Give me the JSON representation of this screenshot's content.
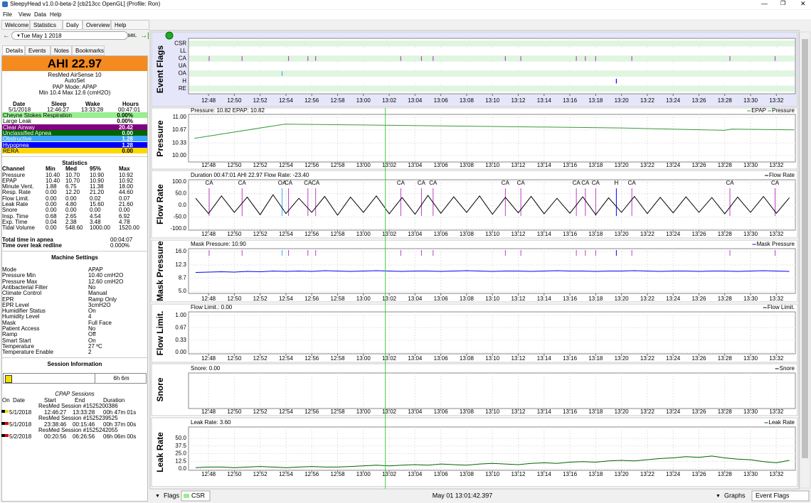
{
  "window": {
    "title": "SleepyHead v1.0.0-beta-2 [cb213cc OpenGL] (Profile: Ron)"
  },
  "menu": [
    "File",
    "View",
    "Data",
    "Help"
  ],
  "tabs": [
    "Welcome",
    "Statistics",
    "Daily",
    "Overview",
    "Help Browser"
  ],
  "date_nav": "Tue May 1 2018",
  "subtabs": [
    "Details",
    "Events",
    "Notes",
    "Bookmarks"
  ],
  "ahi": "AHI 22.97",
  "machine": [
    "ResMed AirSense 10",
    "AutoSet",
    "PAP Mode: APAP",
    "Min 10.4 Max 12.6 (cmH2O)"
  ],
  "summary": {
    "headers": [
      "Date",
      "Sleep",
      "Wake",
      "Hours"
    ],
    "values": [
      "5/1/2018",
      "12:46:27",
      "13:33:28",
      "00:47:01"
    ]
  },
  "indices": [
    {
      "name": "Cheyne Stokes Respiration",
      "value": "0.00%",
      "color": "#98ee90",
      "text": "#000"
    },
    {
      "name": "Large Leak",
      "value": "0.00%",
      "color": "#ffffff",
      "text": "#000"
    },
    {
      "name": "Clear Airway",
      "value": "20.42",
      "color": "#800080",
      "text": "#fff"
    },
    {
      "name": "Unclassified Apnea",
      "value": "0.00",
      "color": "#006400",
      "text": "#fff"
    },
    {
      "name": "Obstructive",
      "value": "1.28",
      "color": "#40a8ff",
      "text": "#fff"
    },
    {
      "name": "Hypopnea",
      "value": "1.28",
      "color": "#0000ff",
      "text": "#fff"
    },
    {
      "name": "RERA",
      "value": "0.00",
      "color": "#ffd700",
      "text": "#000"
    }
  ],
  "statistics": {
    "title": "Statistics",
    "headers": [
      "Channel",
      "Min",
      "Med",
      "95%",
      "Max"
    ],
    "rows": [
      [
        "Pressure",
        "10.40",
        "10.70",
        "10.90",
        "10.92"
      ],
      [
        "EPAP",
        "10.40",
        "10.70",
        "10.90",
        "10.92"
      ],
      [
        "Minute Vent.",
        "1.88",
        "6.75",
        "11.38",
        "18.00"
      ],
      [
        "Resp. Rate",
        "0.00",
        "12.20",
        "21.20",
        "44.60"
      ],
      [
        "Flow Limit.",
        "0.00",
        "0.00",
        "0.02",
        "0.07"
      ],
      [
        "Leak Rate",
        "0.00",
        "4.80",
        "15.60",
        "21.60"
      ],
      [
        "Snore",
        "0.00",
        "0.00",
        "0.00",
        "0.00"
      ],
      [
        "Insp. Time",
        "0.68",
        "2.65",
        "4.54",
        "6.92"
      ],
      [
        "Exp. Time",
        "0.04",
        "2.38",
        "3.48",
        "4.78"
      ],
      [
        "Tidal Volume",
        "0.00",
        "548.60",
        "1000.00",
        "1520.00"
      ]
    ]
  },
  "totals": [
    [
      "Total time in apnea",
      "00:04:07"
    ],
    [
      "Time over leak redline",
      "0.000%"
    ]
  ],
  "machine_settings": {
    "title": "Machine Settings",
    "rows": [
      [
        "Mode",
        "APAP"
      ],
      [
        "Pressure Min",
        "10.40 cmH2O"
      ],
      [
        "Pressure Max",
        "12.60 cmH2O"
      ],
      [
        "Antibacterial Filter",
        "No"
      ],
      [
        "Climate Control",
        "Manual"
      ],
      [
        "EPR",
        "Ramp Only"
      ],
      [
        "EPR Level",
        "3cmH2O"
      ],
      [
        "Humidifier Status",
        "On"
      ],
      [
        "Humidity Level",
        "4"
      ],
      [
        "Mask",
        "Full Face"
      ],
      [
        "Patient Access",
        "No"
      ],
      [
        "Ramp",
        "Off"
      ],
      [
        "Smart Start",
        "On"
      ],
      [
        "Temperature",
        "27 ºC"
      ],
      [
        "Temperature Enable",
        "2"
      ]
    ]
  },
  "session_info": {
    "title": "Session Information",
    "duration": "6h 6m"
  },
  "cpap_sessions": {
    "title": "CPAP Sessions",
    "headers": [
      "On",
      "Date",
      "Start",
      "End",
      "Duration"
    ],
    "sessions": [
      {
        "name": "ResMed Session #1525200386",
        "date": "5/1/2018",
        "start": "12:46:27",
        "end": "13:33:28",
        "duration": "00h 47m 01s"
      },
      {
        "name": "ResMed Session #1525239525",
        "date": "5/1/2018",
        "start": "23:38:46",
        "end": "00:15:46",
        "duration": "00h 37m 00s"
      },
      {
        "name": "ResMed Session #1525242055",
        "date": "5/2/2018",
        "start": "00:20:56",
        "end": "06:26:56",
        "duration": "06h 06m 00s"
      }
    ]
  },
  "charts": {
    "xlim": [
      46.45,
      93.47
    ],
    "cursor": 61.7,
    "grid": true,
    "xticks": [
      {
        "value": 48,
        "label": "12:48"
      },
      {
        "value": 50,
        "label": "12:50"
      },
      {
        "value": 52,
        "label": "12:52"
      },
      {
        "value": 54,
        "label": "12:54"
      },
      {
        "value": 56,
        "label": "12:56"
      },
      {
        "value": 58,
        "label": "12:58"
      },
      {
        "value": 60,
        "label": "13:00"
      },
      {
        "value": 62,
        "label": "13:02"
      },
      {
        "value": 64,
        "label": "13:04"
      },
      {
        "value": 66,
        "label": "13:06"
      },
      {
        "value": 68,
        "label": "13:08"
      },
      {
        "value": 70,
        "label": "13:10"
      },
      {
        "value": 72,
        "label": "13:12"
      },
      {
        "value": 74,
        "label": "13:14"
      },
      {
        "value": 76,
        "label": "13:16"
      },
      {
        "value": 78,
        "label": "13:18"
      },
      {
        "value": 80,
        "label": "13:20"
      },
      {
        "value": 82,
        "label": "13:22"
      },
      {
        "value": 84,
        "label": "13:24"
      },
      {
        "value": 86,
        "label": "13:26"
      },
      {
        "value": 88,
        "label": "13:28"
      },
      {
        "value": 90,
        "label": "13:30"
      },
      {
        "value": 92,
        "label": "13:32"
      }
    ],
    "graphs": [
      {
        "type": "flags",
        "title": "Event Flags",
        "rows": [
          "CSR",
          "LL",
          "CA",
          "UA",
          "OA",
          "H",
          "RE"
        ],
        "events": {
          "CA": [
            48.05,
            50.6,
            54.2,
            55.7,
            56.3,
            62.9,
            64.5,
            65.4,
            71.0,
            72.2,
            76.5,
            77.2,
            78.0,
            80.8,
            88.4,
            91.9
          ],
          "OA": [
            53.7
          ],
          "H": [
            79.6
          ]
        },
        "event_colors": {
          "CA": "#c040c0",
          "OA": "#40a8ff",
          "H": "#0000ff"
        }
      },
      {
        "type": "line",
        "title": "Pressure",
        "header": "Pressure: 10.82 EPAP: 10.82",
        "legend": [
          "EPAP",
          "Pressure"
        ],
        "ylim": [
          10.0,
          11.0
        ],
        "yticks": [
          {
            "value": 10.0,
            "label": "10.00"
          },
          {
            "value": 10.33,
            "label": "10.33"
          },
          {
            "value": 10.67,
            "label": "10.67"
          },
          {
            "value": 11.0,
            "label": "11.00"
          }
        ],
        "series": [
          {
            "color": "#3c9a3c",
            "x": [
              46.9,
              53.9,
              70,
              80,
              88,
              88.5,
              93.4
            ],
            "values": [
              10.45,
              10.82,
              10.76,
              10.72,
              10.66,
              10.69,
              10.67
            ]
          }
        ]
      },
      {
        "type": "line",
        "title": "Flow Rate",
        "header": "Duration 00:47:01 AHI 22.97 Flow Rate: -23.40",
        "legend": [
          "Flow Rate"
        ],
        "event_markers": true,
        "event_labels": true,
        "ylim": [
          -100,
          100
        ],
        "yticks": [
          {
            "value": 100,
            "label": "100.0"
          },
          {
            "value": 50,
            "label": "50.0"
          },
          {
            "value": 0,
            "label": "0.0"
          },
          {
            "value": -50,
            "label": "-50.0"
          },
          {
            "value": -100,
            "label": "-100.0"
          }
        ],
        "series": [
          {
            "color": "#000000",
            "x": [
              47,
              48,
              49,
              50,
              51,
              52,
              53,
              54,
              55,
              56,
              57,
              58,
              59,
              60,
              61,
              62,
              63,
              64,
              65,
              66,
              67,
              68,
              69,
              70,
              71,
              72,
              73,
              74,
              75,
              76,
              77,
              78,
              79,
              80,
              81,
              82,
              83,
              84,
              85,
              86,
              87,
              88,
              89,
              90,
              91,
              92,
              93
            ],
            "values": [
              30,
              -35,
              40,
              -30,
              35,
              -40,
              45,
              -35,
              30,
              -30,
              38,
              -42,
              35,
              -30,
              40,
              -36,
              33,
              -38,
              42,
              -34,
              36,
              -30,
              40,
              -38,
              34,
              -32,
              38,
              -36,
              30,
              -34,
              36,
              -40,
              32,
              -30,
              38,
              -35,
              34,
              -32,
              36,
              -30,
              33,
              -36,
              35,
              -30,
              38,
              -34,
              32
            ]
          }
        ]
      },
      {
        "type": "line",
        "title": "Mask Pressure",
        "header": "Mask Pressure: 10.90",
        "legend": [
          "Mask Pressure"
        ],
        "event_markers": true,
        "event_labels": false,
        "ylim": [
          5.0,
          16.0
        ],
        "yticks": [
          {
            "value": 16.0,
            "label": "16.0"
          },
          {
            "value": 12.3,
            "label": "12.3"
          },
          {
            "value": 8.7,
            "label": "8.7"
          },
          {
            "value": 5.0,
            "label": "5.0"
          }
        ],
        "series": [
          {
            "color": "#0000ee",
            "x": [
              47,
              48,
              49,
              50,
              51,
              52,
              53,
              54,
              55,
              56,
              57,
              58,
              59,
              60,
              61,
              62,
              63,
              64,
              65,
              66,
              67,
              68,
              69,
              70,
              71,
              72,
              73,
              74,
              75,
              76,
              77,
              78,
              79,
              80,
              81,
              82,
              83,
              84,
              85,
              86,
              87,
              88,
              89,
              90,
              91,
              92,
              93
            ],
            "values": [
              10.2,
              10.3,
              10.4,
              10.3,
              10.5,
              10.4,
              10.6,
              10.5,
              10.6,
              10.5,
              10.7,
              10.6,
              10.5,
              10.6,
              10.7,
              10.6,
              10.5,
              10.6,
              10.6,
              10.5,
              10.6,
              10.7,
              10.6,
              10.5,
              10.6,
              10.6,
              10.5,
              10.6,
              10.7,
              10.6,
              10.6,
              10.5,
              10.6,
              10.6,
              10.7,
              10.6,
              10.5,
              10.6,
              10.6,
              10.5,
              10.6,
              10.6,
              10.5,
              10.6,
              10.7,
              10.6,
              10.5
            ]
          }
        ]
      },
      {
        "type": "line",
        "title": "Flow Limit.",
        "header": "Flow Limit.: 0.00",
        "legend": [
          "Flow Limit."
        ],
        "ylim": [
          0.0,
          1.0
        ],
        "yticks": [
          {
            "value": 1.0,
            "label": "1.00"
          },
          {
            "value": 0.67,
            "label": "0.67"
          },
          {
            "value": 0.33,
            "label": "0.33"
          },
          {
            "value": 0.0,
            "label": "0.00"
          }
        ],
        "series": []
      },
      {
        "type": "line",
        "title": "Snore",
        "header": "Snore: 0.00",
        "legend": [
          "Snore"
        ],
        "series": []
      },
      {
        "type": "line",
        "title": "Leak Rate",
        "header": "Leak Rate: 3.60",
        "legend": [
          "Leak Rate"
        ],
        "ylim": [
          0.0,
          50.0
        ],
        "yticks": [
          {
            "value": 50.0,
            "label": "50.0"
          },
          {
            "value": 37.5,
            "label": "37.5"
          },
          {
            "value": 25.0,
            "label": "25.0"
          },
          {
            "value": 12.5,
            "label": "12.5"
          },
          {
            "value": 0.0,
            "label": "0.0"
          }
        ],
        "series": [
          {
            "color": "#006400",
            "x": [
              47,
              48,
              49,
              50,
              51,
              52,
              53,
              54,
              55,
              56,
              57,
              58,
              59,
              60,
              61,
              62,
              63,
              64,
              65,
              66,
              67,
              68,
              69,
              70,
              71,
              72,
              73,
              74,
              75,
              76,
              77,
              78,
              79,
              80,
              81,
              82,
              83,
              84,
              85,
              86,
              87,
              88,
              89,
              90,
              91,
              92,
              93
            ],
            "values": [
              2,
              3,
              3,
              2,
              3,
              4,
              3,
              2,
              3,
              4,
              3,
              3,
              4,
              5,
              6,
              5,
              6,
              7,
              6,
              8,
              7,
              6,
              8,
              9,
              8,
              7,
              9,
              10,
              9,
              11,
              12,
              11,
              13,
              14,
              13,
              15,
              17,
              18,
              20,
              19,
              21,
              18,
              16,
              15,
              12,
              10,
              14
            ]
          }
        ]
      }
    ]
  },
  "bottom_bar": {
    "flags": "Flags",
    "flag_choice": "CSR",
    "position": "May 01 13:01:42.397",
    "graphs": "Graphs",
    "graph_choice": "Event Flags"
  }
}
